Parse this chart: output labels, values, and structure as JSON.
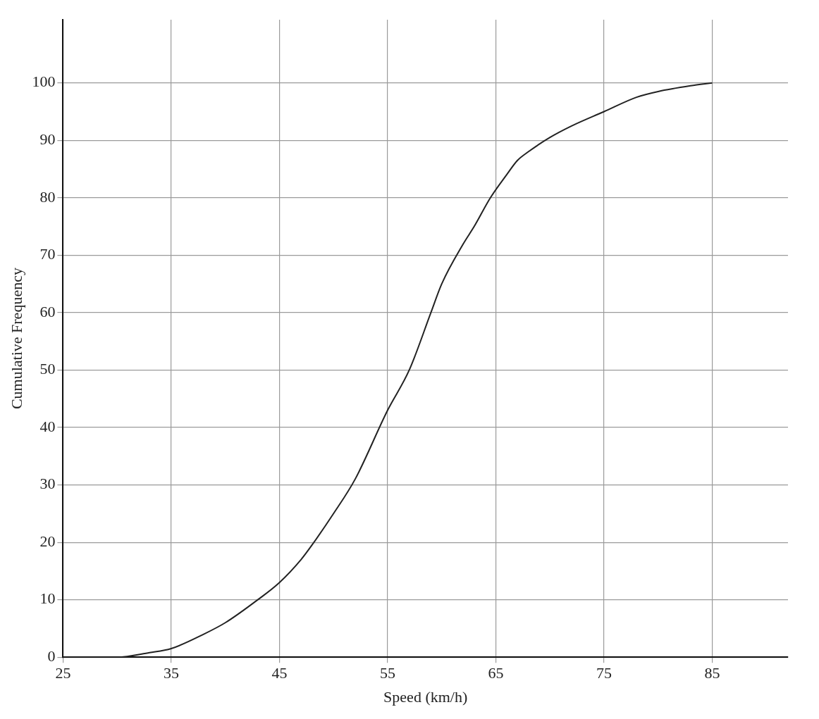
{
  "chart_data": {
    "type": "line",
    "xlabel": "Speed (km/h)",
    "ylabel": "Cumulative Frequency",
    "x": [
      25,
      30,
      33,
      35,
      38,
      40,
      43,
      45,
      47,
      48,
      50,
      52,
      55,
      57,
      59,
      60,
      62,
      63,
      64.5,
      66,
      67,
      68,
      70,
      72,
      75,
      78,
      80,
      83,
      85
    ],
    "series": [
      {
        "color": "#222222",
        "values": [
          0,
          0,
          0.8,
          1.5,
          4,
          6,
          10,
          13,
          17,
          19.5,
          25,
          31,
          43,
          50,
          60,
          65,
          72,
          75,
          80,
          84,
          86.5,
          88,
          90.5,
          92.5,
          95,
          97.5,
          98.5,
          99.5,
          100
        ]
      }
    ],
    "xlim": [
      25,
      92
    ],
    "ylim": [
      0,
      111
    ],
    "xticks": [
      25,
      35,
      45,
      55,
      65,
      75,
      85
    ],
    "yticks": [
      0,
      10,
      20,
      30,
      40,
      50,
      60,
      70,
      80,
      90,
      100
    ],
    "grid": true,
    "legend": false,
    "marker": "none",
    "line_style": "solid"
  }
}
